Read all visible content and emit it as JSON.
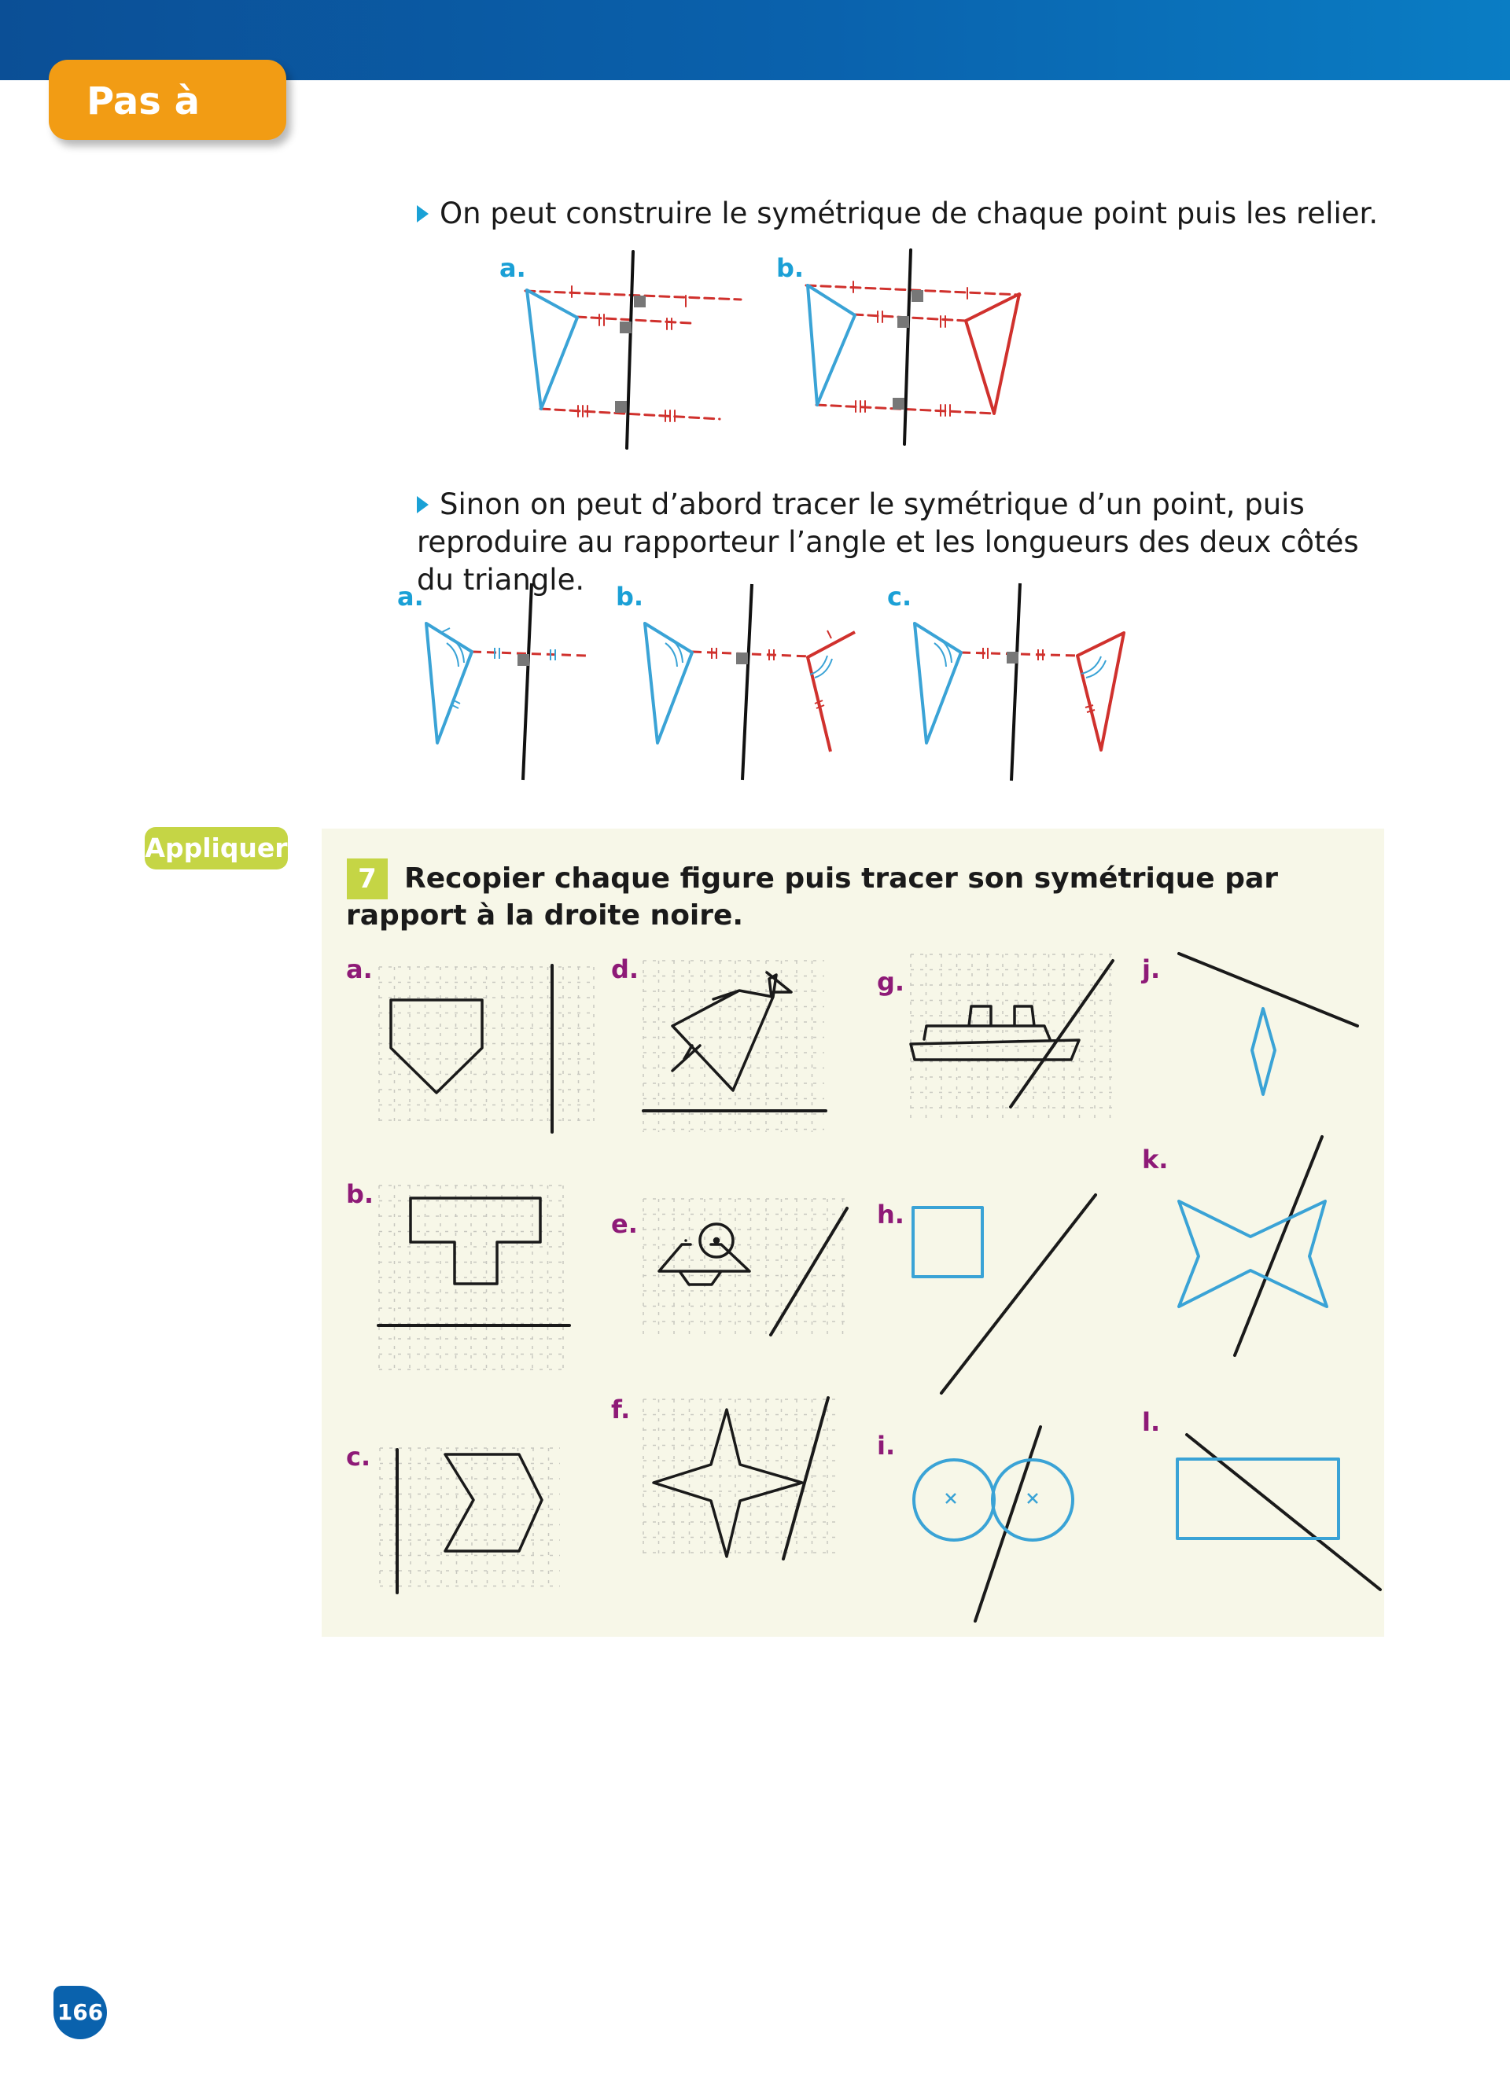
{
  "header": {
    "tab_label": "Pas à pas"
  },
  "step1": {
    "text": "On peut construire le symétrique de chaque point puis les relier."
  },
  "step2": {
    "text": "Sinon on peut d’abord tracer le symétrique d’un point, puis reproduire au rapporteur l’angle et les longueurs des deux côtés du triangle."
  },
  "fig_group1": {
    "labels": [
      "a.",
      "b."
    ]
  },
  "fig_group2": {
    "labels": [
      "a.",
      "b.",
      "c."
    ]
  },
  "section": {
    "badge": "Appliquer"
  },
  "exercise": {
    "number": "7",
    "text": "Recopier chaque figure puis tracer son symétrique par rapport à la droite noire.",
    "labels": [
      "a.",
      "b.",
      "c.",
      "d.",
      "e.",
      "f.",
      "g.",
      "h.",
      "i.",
      "j.",
      "k.",
      "l."
    ]
  },
  "footer": {
    "page_number": "166"
  },
  "colors": {
    "header_blue": "#0a62ad",
    "tab_orange": "#f29c14",
    "accent_green": "#c5d545",
    "figure_blue": "#3aa3d6",
    "figure_red": "#d0312d",
    "label_purple": "#8e1a77"
  }
}
